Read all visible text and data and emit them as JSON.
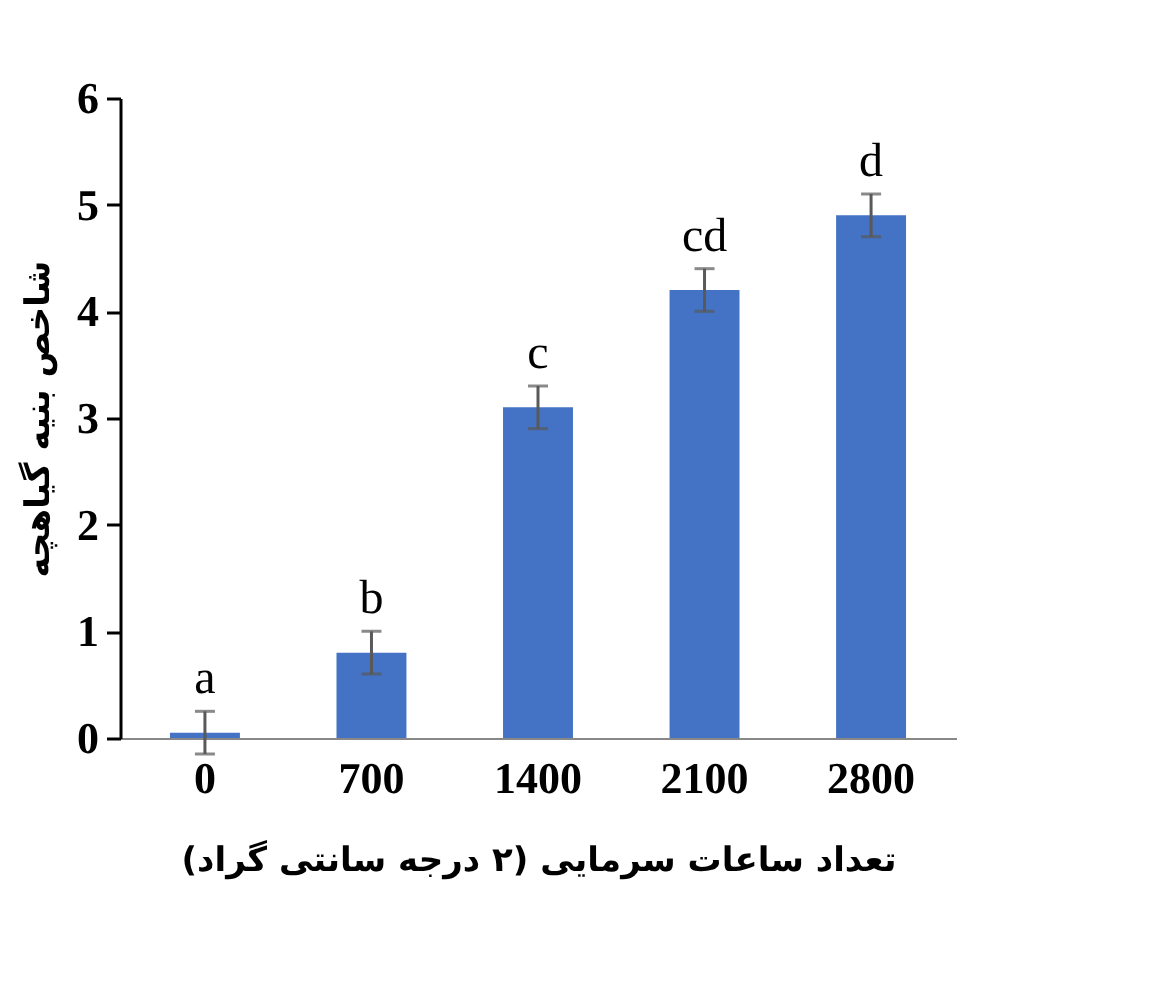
{
  "chart_data": {
    "type": "bar",
    "xlabel": "تعداد ساعات سرمایی (۲ درجه سانتی گراد)",
    "ylabel": "شاخص بنیه گیاهچه",
    "categories": [
      "0",
      "700",
      "1400",
      "2100",
      "2800"
    ],
    "values": [
      0.05,
      0.8,
      3.1,
      4.2,
      4.9
    ],
    "errors": [
      0.2,
      0.2,
      0.2,
      0.2,
      0.2
    ],
    "color": "#4472c4",
    "ylim": [
      0,
      6
    ],
    "yticks": [
      0,
      1,
      2,
      3,
      4,
      5,
      6
    ],
    "grid": false,
    "annotations": [
      "a",
      "b",
      "c",
      "cd",
      "d"
    ]
  }
}
